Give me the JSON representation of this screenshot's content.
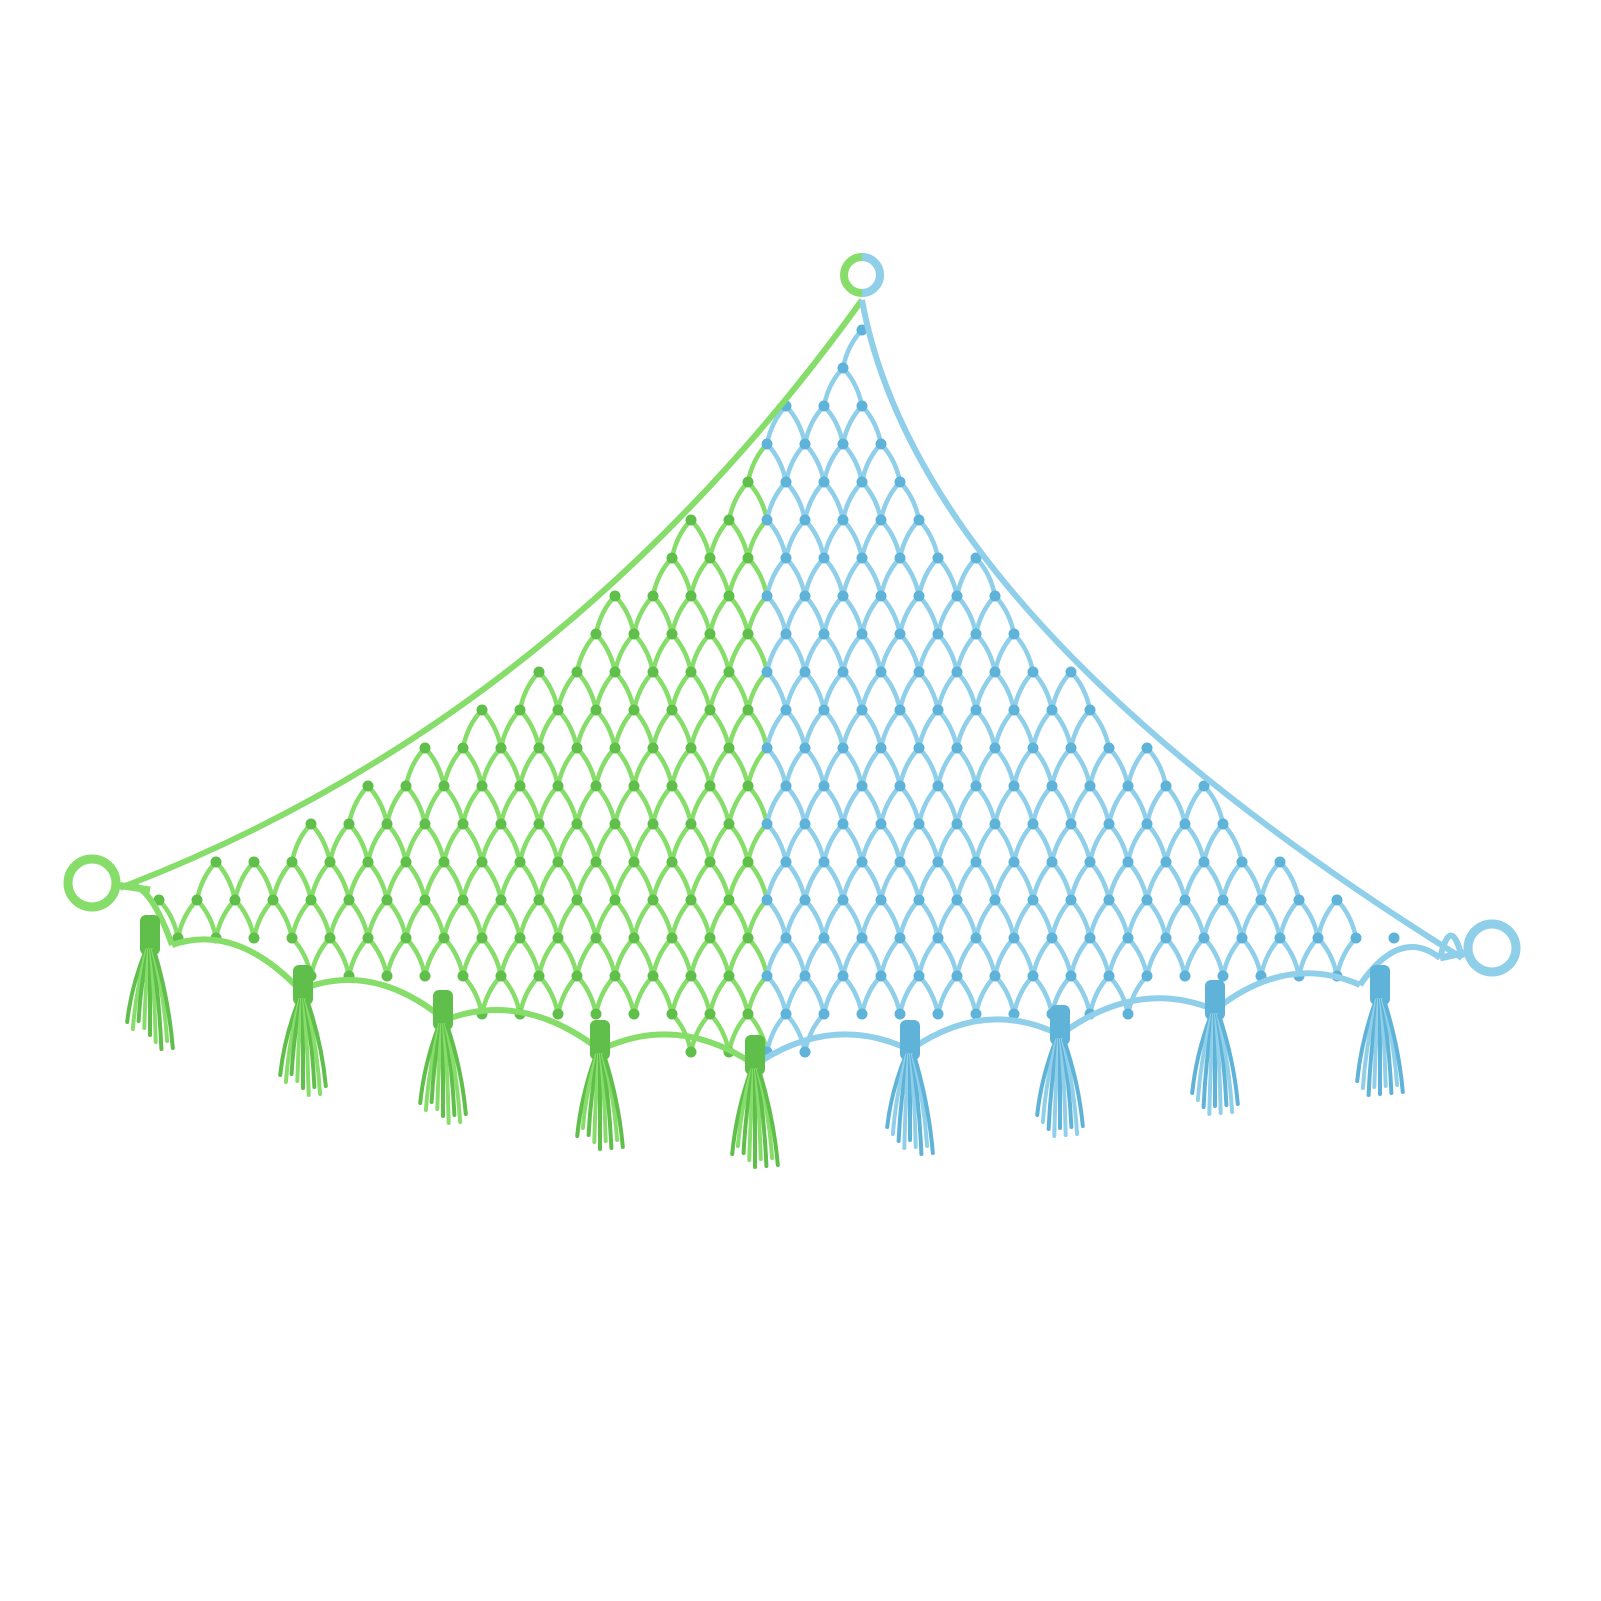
{
  "photo": {
    "subject": "macrame-triangle-toy-hammock-net",
    "background": "#ffffff",
    "colors": {
      "left_half": "#86dd6a",
      "left_half_dark": "#5fbf4a",
      "right_half": "#8fcfea",
      "right_half_dark": "#5fb3d8"
    },
    "hanging_rings": 3,
    "tassels": {
      "green": 5,
      "blue": 4
    }
  }
}
